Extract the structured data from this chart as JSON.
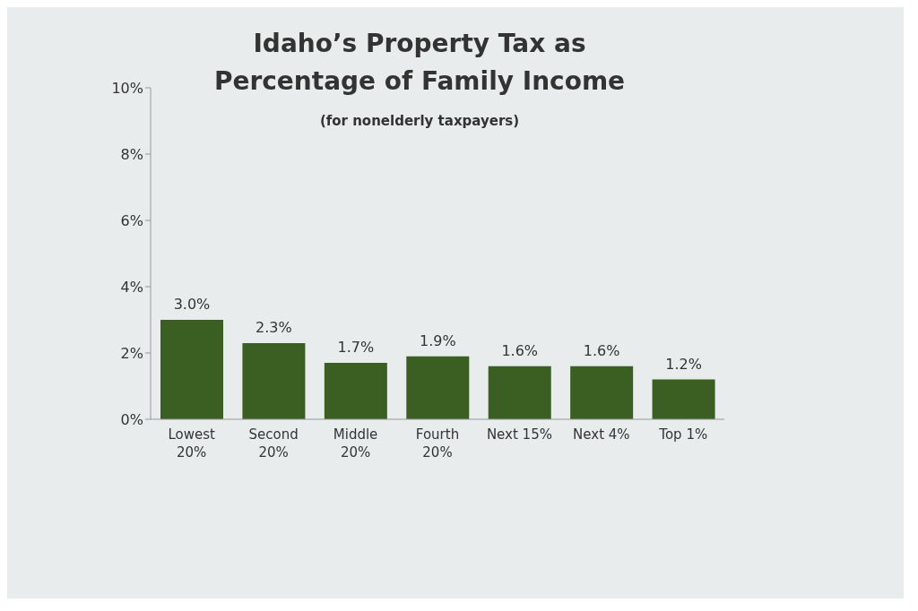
{
  "chart_data": {
    "type": "bar",
    "title": "Idaho’s Property Tax as Percentage of Family Income",
    "subtitle": "(for nonelderly taxpayers)",
    "categories": [
      "Lowest 20%",
      "Second 20%",
      "Middle 20%",
      "Fourth 20%",
      "Next 15%",
      "Next 4%",
      "Top 1%"
    ],
    "values": [
      3.0,
      2.3,
      1.7,
      1.9,
      1.6,
      1.6,
      1.2
    ],
    "value_labels": [
      "3.0%",
      "2.3%",
      "1.7%",
      "1.9%",
      "1.6%",
      "1.6%",
      "1.2%"
    ],
    "color": "#3b5e22",
    "ylim": [
      0,
      10
    ],
    "yticks": [
      {
        "value": 0,
        "label": "0%"
      },
      {
        "value": 2,
        "label": "2%"
      },
      {
        "value": 4,
        "label": "4%"
      },
      {
        "value": 6,
        "label": "6%"
      },
      {
        "value": 8,
        "label": "8%"
      },
      {
        "value": 10,
        "label": "10%"
      }
    ],
    "grid": false,
    "legend": false
  }
}
